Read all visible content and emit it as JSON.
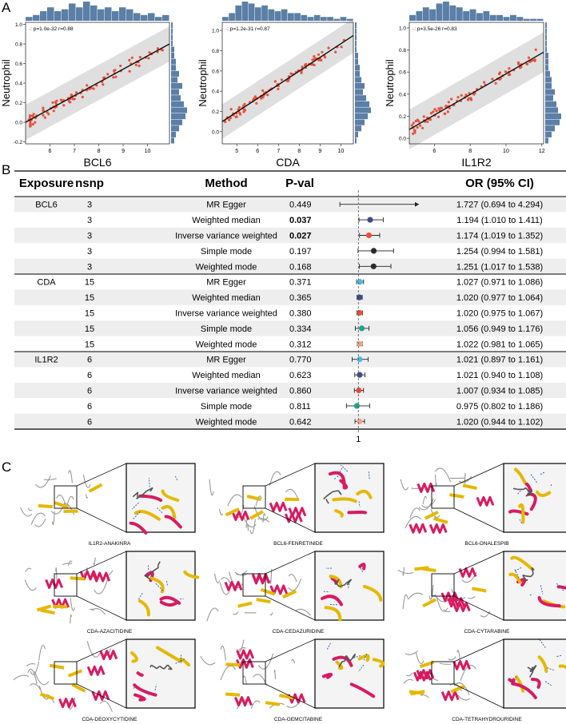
{
  "panels": {
    "a": "A",
    "b": "B",
    "c": "C"
  },
  "chart_data": [
    {
      "type": "scatter",
      "ylabel": "Neutrophil",
      "xlabel": "BCL6",
      "annotation": "·: p=1.0e-32  r=0.88",
      "xlim": [
        5,
        10.9
      ],
      "ylim": [
        -0.22,
        1.02
      ],
      "xticks": [
        "6",
        "7",
        "8",
        "9",
        "10"
      ],
      "yticks": [
        "-0.2",
        "0.0",
        "0.2",
        "0.4",
        "0.6",
        "0.8",
        "1.0"
      ],
      "fit": [
        0.0,
        0.8
      ],
      "band": 0.18,
      "xhist": [
        0.2,
        0.3,
        0.5,
        0.7,
        0.5,
        0.6,
        0.9,
        0.7,
        1.0,
        0.8,
        0.6,
        0.7,
        0.5,
        0.7,
        0.6,
        0.4,
        0.3,
        0.4,
        0.2,
        0.3
      ],
      "yhist": [
        0.2,
        0.3,
        0.5,
        0.7,
        0.9,
        1.0,
        0.8,
        0.6,
        0.5,
        0.7,
        0.4,
        0.5,
        0.3,
        0.3,
        0.2,
        0.2,
        0.1,
        0.1,
        0.1,
        0.1
      ]
    },
    {
      "type": "scatter",
      "ylabel": "Neutrophil",
      "xlabel": "CDA",
      "annotation": "·: p=1.2e-31  r=0.87",
      "xlim": [
        4.3,
        10.6
      ],
      "ylim": [
        -0.12,
        1.08
      ],
      "xticks": [
        "5",
        "6",
        "7",
        "8",
        "9",
        "10"
      ],
      "yticks": [
        "0.0",
        "0.2",
        "0.4",
        "0.6",
        "0.8",
        "1.0"
      ],
      "fit": [
        0.1,
        0.95
      ],
      "band": 0.17,
      "xhist": [
        0.2,
        0.4,
        0.8,
        1.0,
        0.9,
        0.7,
        0.8,
        0.6,
        0.5,
        0.6,
        0.4,
        0.4,
        0.3,
        0.2,
        0.3,
        0.2,
        0.2,
        0.1,
        0.2,
        0.1
      ],
      "yhist": [
        0.1,
        0.2,
        0.4,
        0.6,
        0.8,
        1.0,
        0.9,
        0.7,
        0.5,
        0.6,
        0.4,
        0.3,
        0.3,
        0.2,
        0.2,
        0.1,
        0.1,
        0.1,
        0.1,
        0.1
      ]
    },
    {
      "type": "scatter",
      "ylabel": "Neutrophil",
      "xlabel": "IL1R2",
      "annotation": "·: p=3.5e-26  r=0.83",
      "xlim": [
        4.6,
        12.1
      ],
      "ylim": [
        -0.05,
        1.05
      ],
      "xticks": [
        "6",
        "8",
        "10",
        "12"
      ],
      "yticks": [
        "0.0",
        "0.2",
        "0.4",
        "0.6",
        "0.8",
        "1.0"
      ],
      "fit": [
        0.08,
        0.78
      ],
      "band": 0.18,
      "xhist": [
        0.3,
        0.5,
        0.7,
        0.6,
        0.9,
        1.0,
        0.8,
        0.7,
        0.5,
        0.6,
        0.4,
        0.5,
        0.3,
        0.3,
        0.2,
        0.3,
        0.2,
        0.1,
        0.1,
        0.1
      ],
      "yhist": [
        0.2,
        0.4,
        0.6,
        0.9,
        1.0,
        0.8,
        0.7,
        0.5,
        0.6,
        0.4,
        0.4,
        0.3,
        0.2,
        0.2,
        0.2,
        0.1,
        0.1,
        0.1,
        0.1,
        0.1
      ]
    }
  ],
  "forest": {
    "type": "table",
    "headers": {
      "exposure": "Exposure",
      "nsnp": "nsnp",
      "method": "Method",
      "pval": "P-val",
      "or": "OR (95% CI)"
    },
    "axis_label": "1",
    "xlim": [
      0.6,
      2.0
    ],
    "rows": [
      {
        "exposure": "BCL6",
        "nsnp": "3",
        "method": "MR Egger",
        "pval": "0.449",
        "bold": false,
        "or_text": "1.727 (0.694 to 4.294)",
        "or": 1.727,
        "lo": 0.694,
        "hi": 4.294,
        "color": "#2b2b2b"
      },
      {
        "exposure": "",
        "nsnp": "3",
        "method": "Weighted median",
        "pval": "0.037",
        "bold": true,
        "or_text": "1.194 (1.010 to 1.411)",
        "or": 1.194,
        "lo": 1.01,
        "hi": 1.411,
        "color": "#3b4a8c"
      },
      {
        "exposure": "",
        "nsnp": "3",
        "method": "Inverse variance weighted",
        "pval": "0.027",
        "bold": true,
        "or_text": "1.174 (1.019 to 1.352)",
        "or": 1.174,
        "lo": 1.019,
        "hi": 1.352,
        "color": "#e8503a"
      },
      {
        "exposure": "",
        "nsnp": "3",
        "method": "Simple mode",
        "pval": "0.197",
        "bold": false,
        "or_text": "1.254 (0.994 to 1.581)",
        "or": 1.254,
        "lo": 0.994,
        "hi": 1.581,
        "color": "#2b2b2b"
      },
      {
        "exposure": "",
        "nsnp": "3",
        "method": "Weighted mode",
        "pval": "0.168",
        "bold": false,
        "or_text": "1.251 (1.017 to 1.538)",
        "or": 1.251,
        "lo": 1.017,
        "hi": 1.538,
        "color": "#2b2b2b"
      },
      {
        "exposure": "CDA",
        "nsnp": "15",
        "method": "MR Egger",
        "pval": "0.371",
        "bold": false,
        "or_text": "1.027 (0.971 to 1.086)",
        "or": 1.027,
        "lo": 0.971,
        "hi": 1.086,
        "color": "#4fb9e0"
      },
      {
        "exposure": "",
        "nsnp": "15",
        "method": "Weighted median",
        "pval": "0.365",
        "bold": false,
        "or_text": "1.020 (0.977 to 1.064)",
        "or": 1.02,
        "lo": 0.977,
        "hi": 1.064,
        "color": "#3b4a8c"
      },
      {
        "exposure": "",
        "nsnp": "15",
        "method": "Inverse variance weighted",
        "pval": "0.380",
        "bold": false,
        "or_text": "1.020 (0.975 to 1.067)",
        "or": 1.02,
        "lo": 0.975,
        "hi": 1.067,
        "color": "#e8503a"
      },
      {
        "exposure": "",
        "nsnp": "15",
        "method": "Simple mode",
        "pval": "0.334",
        "bold": false,
        "or_text": "1.056 (0.949 to 1.176)",
        "or": 1.056,
        "lo": 0.949,
        "hi": 1.176,
        "color": "#1fa58c"
      },
      {
        "exposure": "",
        "nsnp": "15",
        "method": "Weighted mode",
        "pval": "0.312",
        "bold": false,
        "or_text": "1.022 (0.981 to 1.065)",
        "or": 1.022,
        "lo": 0.981,
        "hi": 1.065,
        "color": "#f0a488"
      },
      {
        "exposure": "IL1R2",
        "nsnp": "6",
        "method": "MR Egger",
        "pval": "0.770",
        "bold": false,
        "or_text": "1.021 (0.897 to 1.161)",
        "or": 1.021,
        "lo": 0.897,
        "hi": 1.161,
        "color": "#4fb9e0"
      },
      {
        "exposure": "",
        "nsnp": "6",
        "method": "Weighted median",
        "pval": "0.623",
        "bold": false,
        "or_text": "1.021 (0.940 to 1.108)",
        "or": 1.021,
        "lo": 0.94,
        "hi": 1.108,
        "color": "#3b4a8c"
      },
      {
        "exposure": "",
        "nsnp": "6",
        "method": "Inverse variance weighted",
        "pval": "0.860",
        "bold": false,
        "or_text": "1.007 (0.934 to 1.085)",
        "or": 1.007,
        "lo": 0.934,
        "hi": 1.085,
        "color": "#e8503a"
      },
      {
        "exposure": "",
        "nsnp": "6",
        "method": "Simple mode",
        "pval": "0.811",
        "bold": false,
        "or_text": "0.975 (0.802 to 1.186)",
        "or": 0.975,
        "lo": 0.802,
        "hi": 1.186,
        "color": "#1fa58c"
      },
      {
        "exposure": "",
        "nsnp": "6",
        "method": "Weighted mode",
        "pval": "0.642",
        "bold": false,
        "or_text": "1.020 (0.944 to 1.102)",
        "or": 1.02,
        "lo": 0.944,
        "hi": 1.102,
        "color": "#f0a488"
      }
    ]
  },
  "docking": [
    "IL1R2-ANAKINRA",
    "BCL6-FENRETINIDE",
    "BCL6-ONALESPIB",
    "CDA-AZACITIDINE",
    "CDA-CEDAZURIDINE",
    "CDA-CYTARABINE",
    "CDA-DEOXYCYTIDINE",
    "CDA-GEMCITABINE",
    "CDA-TETRAHYDROURIDINE"
  ],
  "colors": {
    "hist": "#5b7fa6",
    "band": "#d9d9d9",
    "point": "#e8503a",
    "stripe": "#eeeeee",
    "helix": "#d81b60",
    "sheet": "#e6b800"
  }
}
